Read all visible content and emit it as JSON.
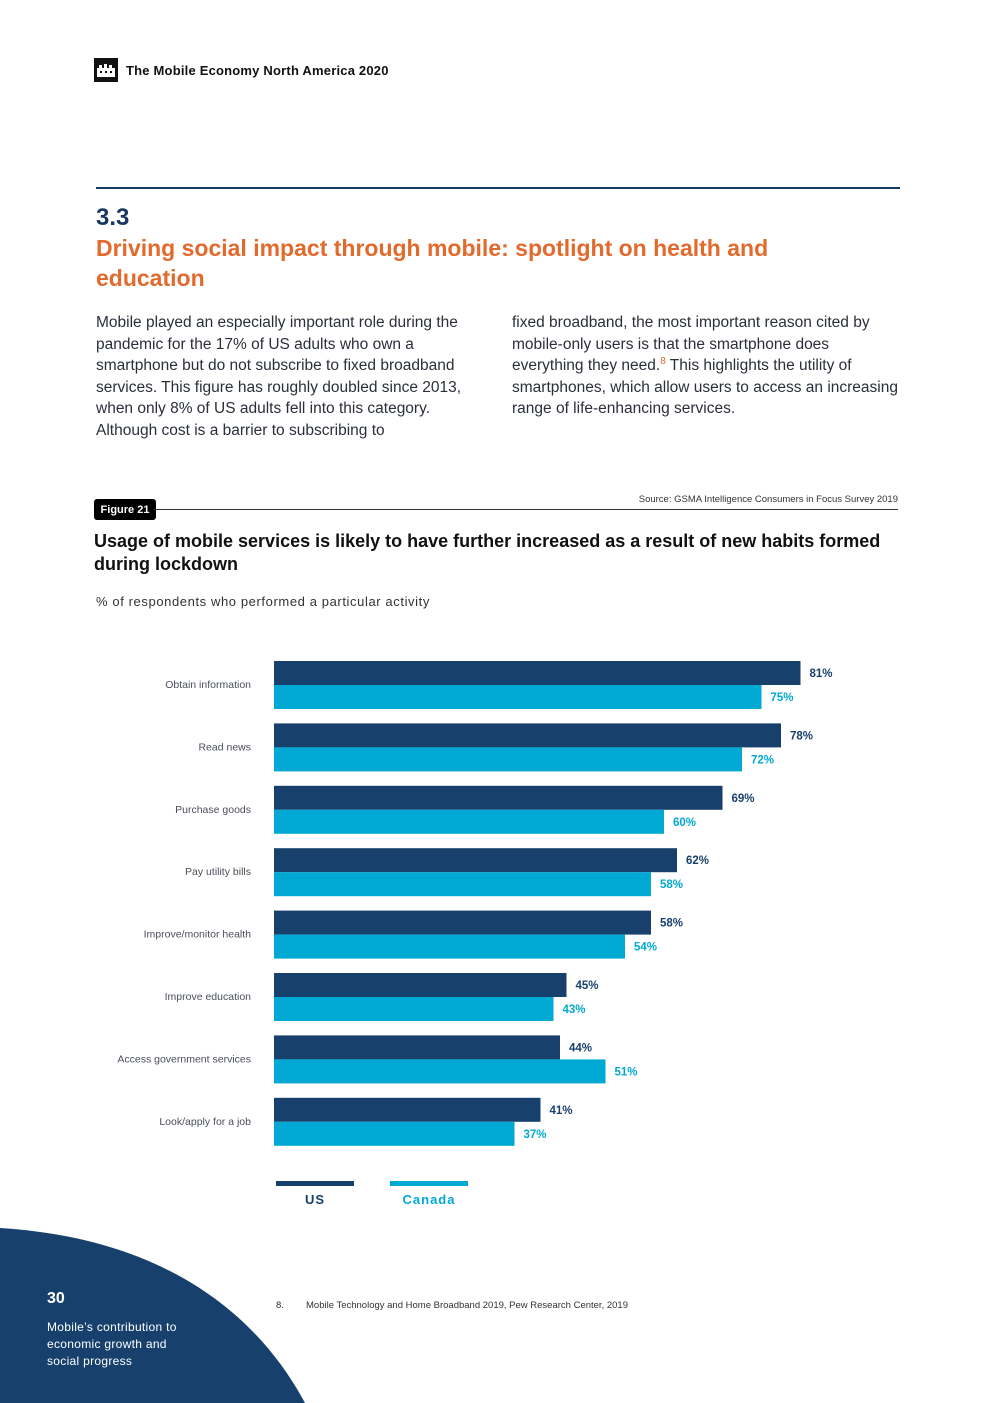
{
  "header": {
    "title": "The Mobile Economy North America 2020"
  },
  "section": {
    "number": "3.3",
    "title": "Driving social impact through mobile: spotlight on health and education"
  },
  "body": {
    "left": "Mobile played an especially important role during the pandemic for the 17% of US adults who own a smartphone but do not subscribe to fixed broadband services. This figure has roughly doubled since 2013, when only 8% of US adults fell into this category. Although cost is a barrier to subscribing to",
    "right_before": "fixed broadband, the most important reason cited by mobile-only users is that the smartphone does everything they need.",
    "right_ref": "8",
    "right_after": " This highlights the utility of smartphones, which allow users to access an increasing range of life-enhancing services."
  },
  "figure": {
    "label": "Figure 21",
    "source": "Source: GSMA Intelligence Consumers in Focus Survey 2019"
  },
  "chart_data": {
    "type": "bar",
    "orientation": "horizontal",
    "title": "Usage of mobile services is likely to have further increased as a result of new habits formed during lockdown",
    "subtitle": "% of respondents who performed a particular activity",
    "categories": [
      "Obtain information",
      "Read news",
      "Purchase goods",
      "Pay utility bills",
      "Improve/monitor health",
      "Improve education",
      "Access government services",
      "Look/apply for a job"
    ],
    "series": [
      {
        "name": "US",
        "color": "#17406d",
        "values": [
          81,
          78,
          69,
          62,
          58,
          45,
          44,
          41
        ]
      },
      {
        "name": "Canada",
        "color": "#00a9d4",
        "values": [
          75,
          72,
          60,
          58,
          54,
          43,
          51,
          37
        ]
      }
    ],
    "value_suffix": "%",
    "xlim": [
      0,
      100
    ],
    "legend_position": "bottom-left"
  },
  "legend": {
    "us": "US",
    "canada": "Canada"
  },
  "footnote": {
    "number": "8.",
    "text": "Mobile Technology and Home Broadband 2019, Pew Research Center, 2019"
  },
  "footer": {
    "page_number": "30",
    "caption": "Mobile’s contribution to economic growth and social progress"
  },
  "colors": {
    "navy": "#17406d",
    "cyan": "#00a9d4",
    "orange": "#e26a2c",
    "corner": "#17406d"
  }
}
